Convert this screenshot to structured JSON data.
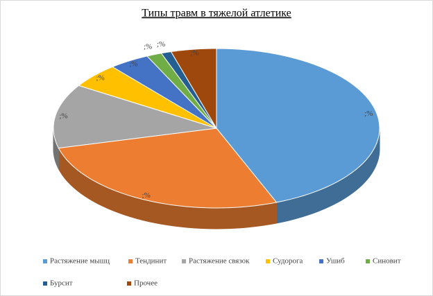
{
  "chart_data": {
    "type": "pie",
    "title": "Типы травм в тяжелой атлетике",
    "categories": [
      "Растяжение мышц",
      "Тендинит",
      "Растяжение связок",
      "Судорога",
      "Ушиб",
      "Синовит",
      "Бурсит",
      "Прочее"
    ],
    "values": [
      44,
      27,
      13,
      5,
      4,
      1.5,
      1,
      4.5
    ],
    "value_labels": [
      ";%",
      ";%",
      ";%",
      ";%",
      ";%",
      ";%",
      ";%",
      ";%"
    ],
    "colors": [
      "#5b9bd5",
      "#ed7d31",
      "#a5a5a5",
      "#ffc000",
      "#4472c4",
      "#70ad47",
      "#255e91",
      "#9e480e"
    ],
    "legend": "bottom"
  }
}
